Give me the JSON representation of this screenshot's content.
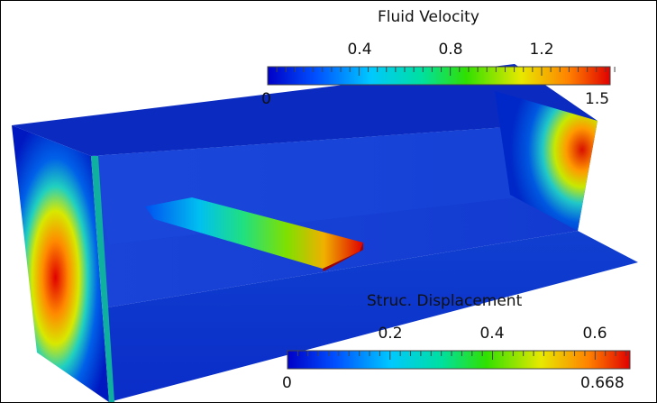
{
  "fluid_colorbar": {
    "title": "Fluid Velocity",
    "min_label": "0",
    "max_label": "1.5",
    "ticks": [
      "0.4",
      "0.8",
      "1.2"
    ],
    "range": [
      0,
      1.5
    ]
  },
  "struct_colorbar": {
    "title": "Struc. Displacement",
    "min_label": "0",
    "max_label": "0.668",
    "ticks": [
      "0.2",
      "0.4",
      "0.6"
    ],
    "range": [
      0,
      0.668
    ]
  },
  "colormap": [
    "#0000c8",
    "#0050ff",
    "#00c8ff",
    "#00e0a0",
    "#30e000",
    "#e8e800",
    "#ff8000",
    "#e00000"
  ]
}
